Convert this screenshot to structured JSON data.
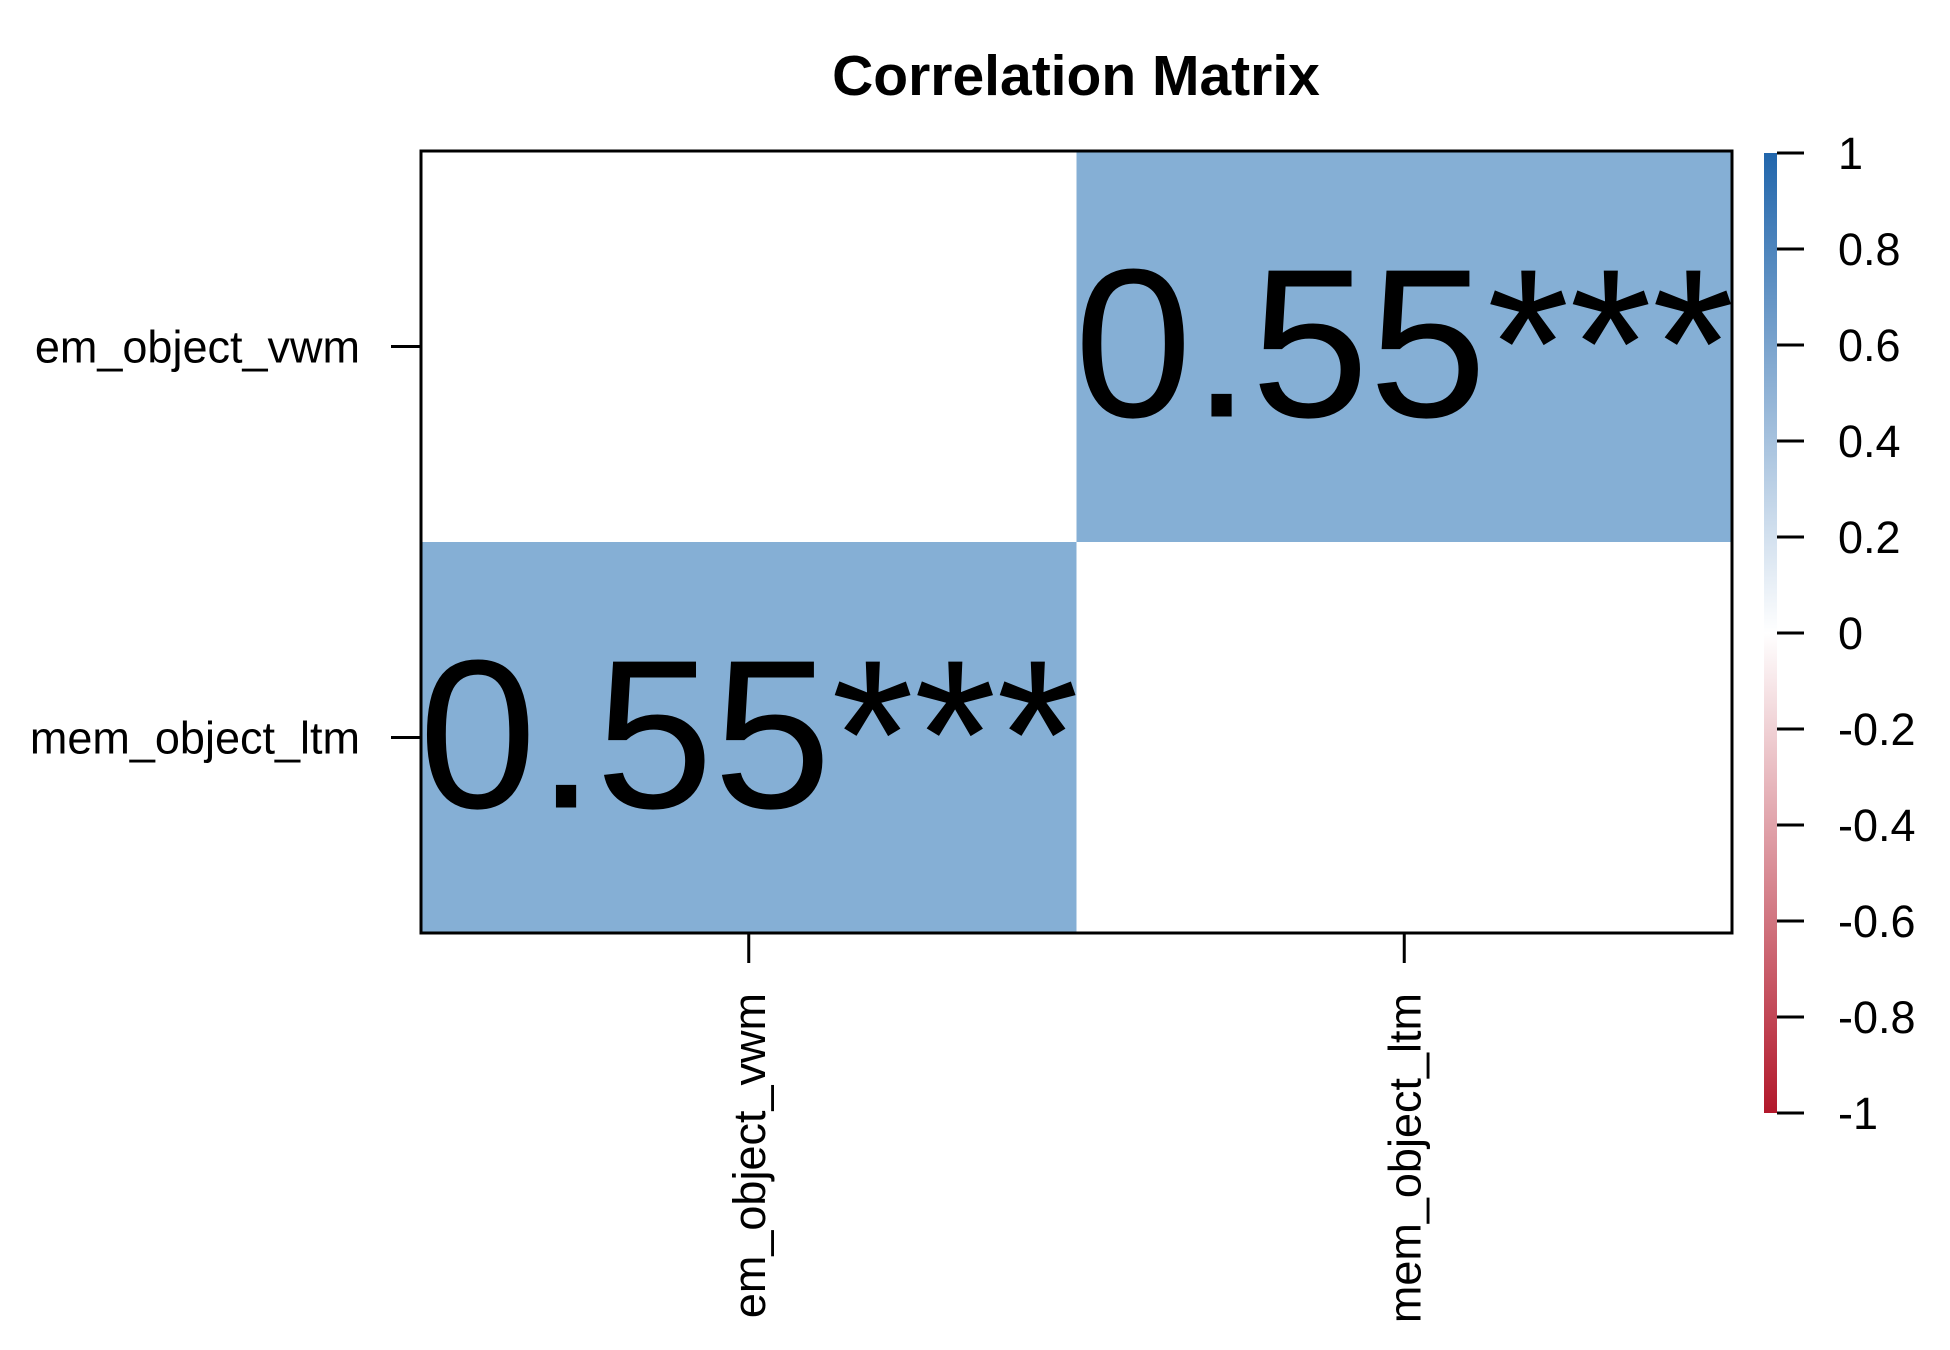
{
  "chart_data": {
    "type": "heatmap",
    "title": "Correlation Matrix",
    "row_labels": [
      "em_object_vwm",
      "mem_object_ltm"
    ],
    "col_labels": [
      "em_object_vwm",
      "mem_object_ltm"
    ],
    "cells": [
      {
        "row": 0,
        "col": 0,
        "value": null,
        "label": ""
      },
      {
        "row": 0,
        "col": 1,
        "value": 0.55,
        "label": "0.55***"
      },
      {
        "row": 1,
        "col": 0,
        "value": 0.55,
        "label": "0.55***"
      },
      {
        "row": 1,
        "col": 1,
        "value": null,
        "label": ""
      }
    ],
    "colorbar": {
      "range": [
        -1,
        1
      ],
      "ticks": [
        1,
        0.8,
        0.6,
        0.4,
        0.2,
        0,
        -0.2,
        -0.4,
        -0.6,
        -0.8,
        -1
      ],
      "tick_labels": [
        "1",
        "0.8",
        "0.6",
        "0.4",
        "0.2",
        "0",
        "-0.2",
        "-0.4",
        "-0.6",
        "-0.8",
        "-1"
      ],
      "low_color": "#B2182B",
      "mid_color": "#FFFFFF",
      "high_color": "#2166AC"
    },
    "cell_fill_color": "#85AFD5",
    "empty_cell_color": "#FFFFFF",
    "grid": false
  }
}
